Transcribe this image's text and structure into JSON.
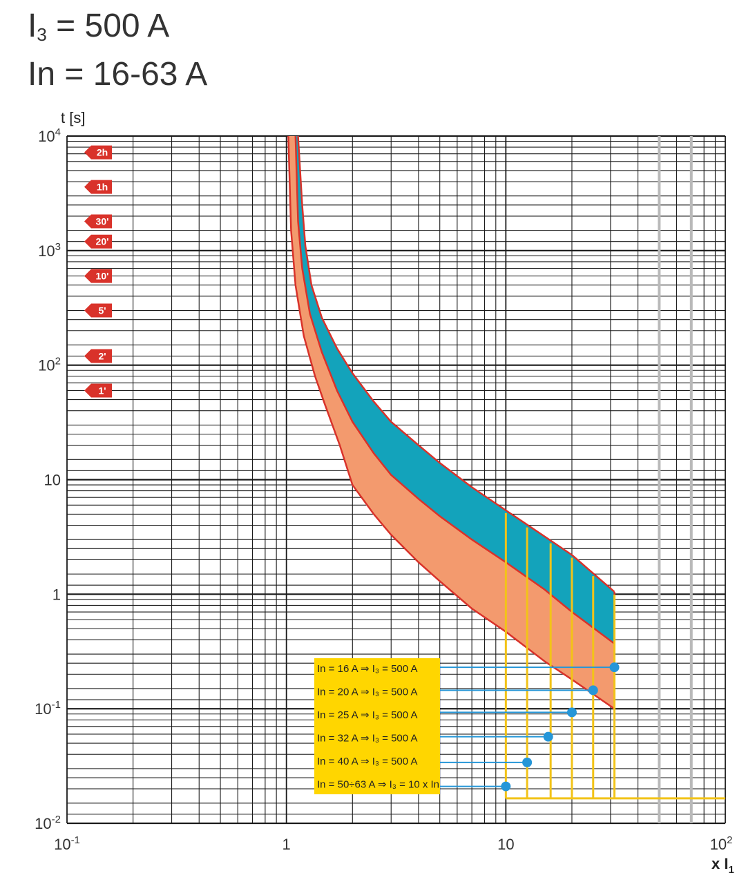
{
  "header": {
    "line1_main": "I",
    "line1_sub": "3",
    "line1_rest": " = 500 A",
    "line2": "In = 16-63 A"
  },
  "colors": {
    "band_upper": "#13a3bb",
    "band_lower": "#f39a6e",
    "band_edge": "#d9322a",
    "grid": "#1a1a1a",
    "grid_light": "#b9b9b9",
    "yellow": "#f2c318",
    "legend_bg": "#ffd600",
    "marker": "#2596d8",
    "time_marker": "#d9322a"
  },
  "chart_data": {
    "type": "line",
    "ylabel": "t [s]",
    "xlabel": "x I",
    "xlabel_sub": "1",
    "x_scale": "log",
    "y_scale": "log",
    "xlim": [
      0.1,
      100
    ],
    "ylim": [
      0.01,
      10000
    ],
    "grid": true,
    "x_ticks": [
      {
        "value": 0.1,
        "base": "10",
        "exp": "-1"
      },
      {
        "value": 1,
        "base": "1",
        "exp": ""
      },
      {
        "value": 10,
        "base": "10",
        "exp": ""
      },
      {
        "value": 100,
        "base": "10",
        "exp": "2"
      }
    ],
    "y_ticks": [
      {
        "value": 10000,
        "base": "10",
        "exp": "4"
      },
      {
        "value": 1000,
        "base": "10",
        "exp": "3"
      },
      {
        "value": 100,
        "base": "10",
        "exp": "2"
      },
      {
        "value": 10,
        "base": "10",
        "exp": ""
      },
      {
        "value": 1,
        "base": "1",
        "exp": ""
      },
      {
        "value": 0.1,
        "base": "10",
        "exp": "-1"
      },
      {
        "value": 0.01,
        "base": "10",
        "exp": "-2"
      }
    ],
    "time_markers": [
      {
        "label": "2h",
        "value": 7200
      },
      {
        "label": "1h",
        "value": 3600
      },
      {
        "label": "30'",
        "value": 1800
      },
      {
        "label": "20'",
        "value": 1200
      },
      {
        "label": "10'",
        "value": 600
      },
      {
        "label": "5'",
        "value": 300
      },
      {
        "label": "2'",
        "value": 120
      },
      {
        "label": "1'",
        "value": 60
      }
    ],
    "series": [
      {
        "role": "cold-curve-left-edge",
        "x": [
          1.02,
          1.05,
          1.1,
          1.2,
          1.35,
          1.5,
          1.75,
          2,
          2.5,
          3,
          4,
          5,
          7,
          10,
          15,
          20,
          31.25
        ],
        "y": [
          10000,
          1500,
          500,
          180,
          80,
          45,
          20,
          9,
          5,
          3.3,
          1.9,
          1.3,
          0.75,
          0.47,
          0.26,
          0.18,
          0.1
        ]
      },
      {
        "role": "middle-edge",
        "x": [
          1.1,
          1.13,
          1.18,
          1.28,
          1.45,
          1.7,
          2,
          2.5,
          3,
          4,
          5,
          7,
          10,
          15,
          20,
          31.25
        ],
        "y": [
          10000,
          1800,
          700,
          280,
          130,
          60,
          32,
          17,
          11,
          6.8,
          4.8,
          3,
          1.9,
          1.1,
          0.7,
          0.37
        ]
      },
      {
        "role": "hot-curve-right-edge",
        "x": [
          1.13,
          1.18,
          1.22,
          1.3,
          1.45,
          1.7,
          2,
          2.5,
          3,
          4,
          5,
          7,
          10,
          15,
          20,
          31.25
        ],
        "y": [
          10000,
          2500,
          1100,
          500,
          260,
          140,
          85,
          48,
          32,
          20,
          14,
          8.6,
          5.4,
          3.2,
          2.2,
          1.05
        ]
      }
    ],
    "yellow_lines_x": [
      10,
      12.5,
      16,
      20,
      25,
      31.25
    ],
    "yellow_baseline_y": 0.0165,
    "gray_lines_x": [
      50,
      70
    ],
    "annotations": [
      {
        "label": "In = 16 A ⇒ I₃ = 500 A",
        "x": 31.25,
        "y": 0.23
      },
      {
        "label": "In = 20 A ⇒ I₃ = 500 A",
        "x": 25,
        "y": 0.145
      },
      {
        "label": "In = 25 A ⇒ I₃ = 500 A",
        "x": 20,
        "y": 0.093
      },
      {
        "label": "In = 32 A ⇒ I₃ = 500 A",
        "x": 15.6,
        "y": 0.057
      },
      {
        "label": "In = 40 A ⇒ I₃ = 500 A",
        "x": 12.5,
        "y": 0.034
      },
      {
        "label": "In = 50÷63 A ⇒ I₃ = 10 x In",
        "x": 10,
        "y": 0.021
      }
    ]
  }
}
